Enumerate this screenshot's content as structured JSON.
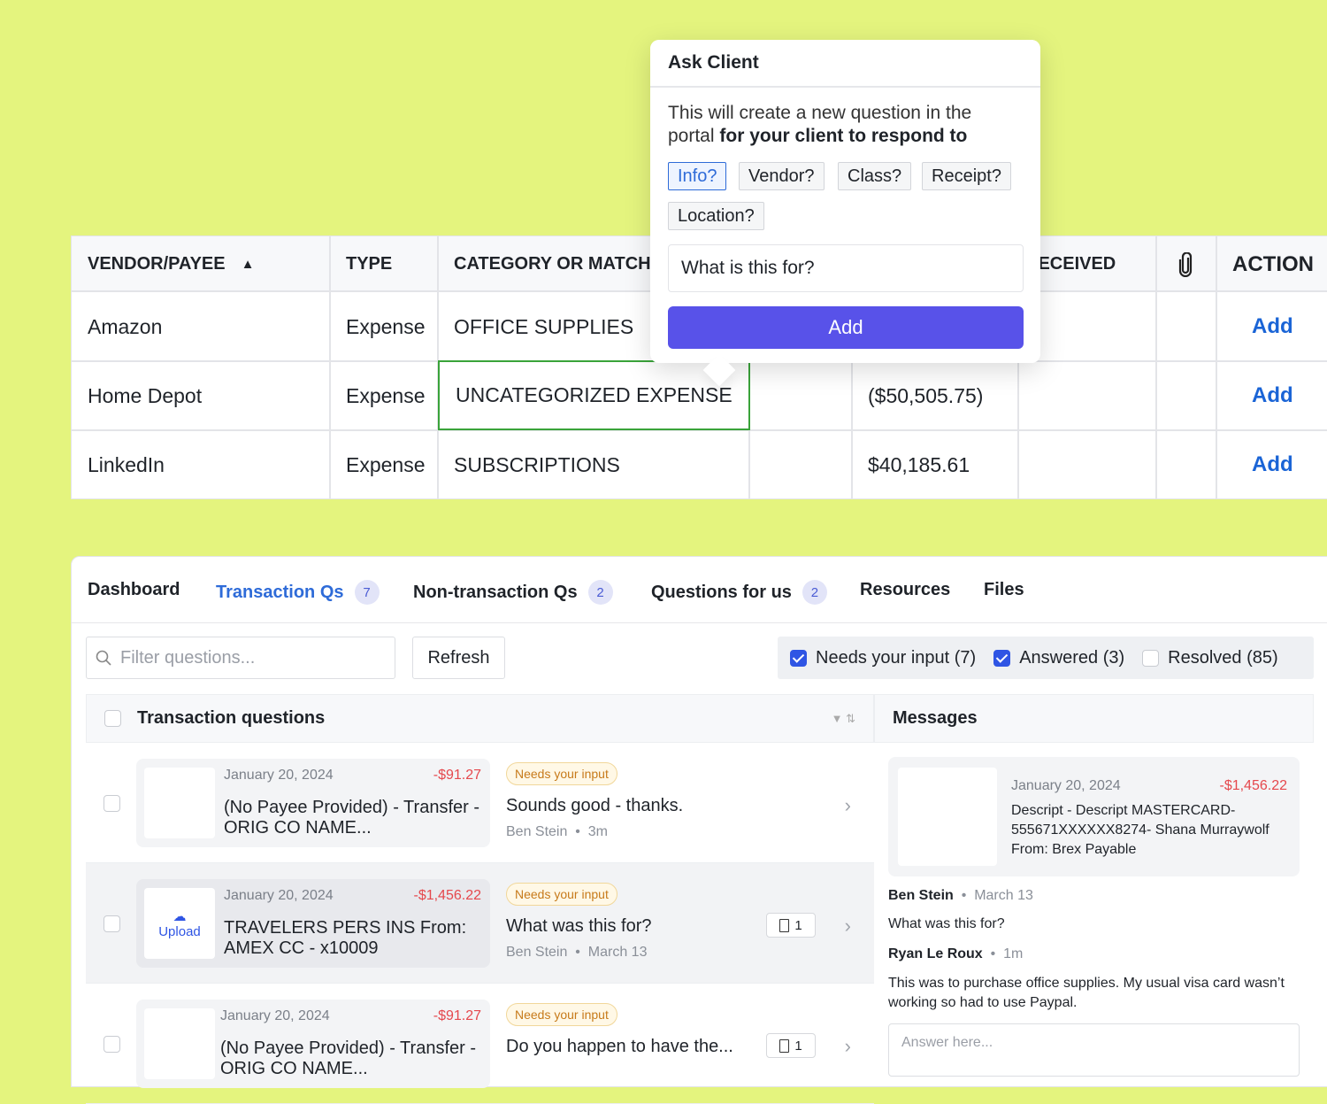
{
  "colors": {
    "background": "#e4f47e",
    "primary": "#5852e9",
    "link": "#1a64d6",
    "negative": "#e5484d",
    "selected_cell": "#3aa33a"
  },
  "table": {
    "headers": [
      "VENDOR/PAYEE",
      "TYPE",
      "CATEGORY OR MATCH",
      "",
      "RECEIVED",
      "paperclip-icon",
      "ACTION"
    ],
    "sort": "ascending",
    "rows": [
      {
        "vendor": "Amazon",
        "type": "Expense",
        "category": "OFFICE SUPPLIES",
        "amount": "",
        "action": "Add"
      },
      {
        "vendor": "Home Depot",
        "type": "Expense",
        "category": "UNCATEGORIZED EXPENSE",
        "amount": "($50,505.75)",
        "action": "Add"
      },
      {
        "vendor": "LinkedIn",
        "type": "Expense",
        "category": "SUBSCRIPTIONS",
        "amount": "$40,185.61",
        "action": "Add"
      }
    ]
  },
  "popover": {
    "title": "Ask Client",
    "text_normal": "This will create a new question in the portal ",
    "text_bold": "for your client to respond to",
    "chips": [
      "Info?",
      "Vendor?",
      "Class?",
      "Receipt?",
      "Location?"
    ],
    "selected_chip": "Info?",
    "input_value": "What is this for?",
    "add_label": "Add"
  },
  "tabs": [
    {
      "label": "Dashboard"
    },
    {
      "label": "Transaction Qs",
      "count": "7",
      "active": true
    },
    {
      "label": "Non-transaction Qs",
      "count": "2"
    },
    {
      "label": "Questions for us",
      "count": "2"
    },
    {
      "label": "Resources"
    },
    {
      "label": "Files"
    }
  ],
  "filter": {
    "placeholder": "Filter questions...",
    "refresh": "Refresh",
    "checks": [
      {
        "label": "Needs your input (7)",
        "checked": true
      },
      {
        "label": "Answered (3)",
        "checked": true
      },
      {
        "label": "Resolved (85)",
        "checked": false
      }
    ]
  },
  "list": {
    "title": "Transaction questions",
    "items": [
      {
        "date": "January 20, 2024",
        "amount": "-$91.27",
        "desc": "(No Payee Provided) - Transfer - ORIG CO NAME...",
        "status": "Needs your input",
        "message": "Sounds good - thanks.",
        "author": "Ben Stein",
        "time": "3m",
        "attachments": ""
      },
      {
        "date": "January 20, 2024",
        "amount": "-$1,456.22",
        "desc": "TRAVELERS PERS INS From: AMEX CC - x10009",
        "status": "Needs your input",
        "message": "What was this for?",
        "author": "Ben Stein",
        "time": "March 13",
        "attachments": "1",
        "upload": "Upload"
      },
      {
        "date": "January 20, 2024",
        "amount": "-$91.27",
        "desc": "(No Payee Provided) - Transfer - ORIG CO NAME...",
        "status": "Needs your input",
        "message": "Do you happen to have the...",
        "author": "",
        "time": "",
        "attachments": "1"
      }
    ]
  },
  "messages": {
    "title": "Messages",
    "card": {
      "date": "January 20, 2024",
      "amount": "-$1,456.22",
      "desc": "Descript - Descript MASTERCARD-555671XXXXXX8274- Shana Murraywolf From: Brex Payable"
    },
    "thread": [
      {
        "author": "Ben Stein",
        "time": "March 13",
        "text": "What was this for?"
      },
      {
        "author": "Ryan Le Roux",
        "time": "1m",
        "text": "This was to purchase office supplies. My usual visa card wasn’t working so had to use Paypal."
      }
    ],
    "answer_placeholder": "Answer here..."
  }
}
